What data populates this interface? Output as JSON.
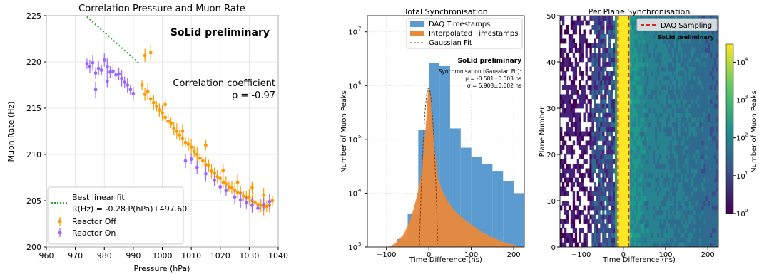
{
  "chart_data": [
    {
      "type": "scatter",
      "title": "Correlation Pressure and Muon Rate",
      "xlabel": "Pressure (hPa)",
      "ylabel": "Muon Rate (Hz)",
      "xlim": [
        960,
        1040
      ],
      "ylim": [
        200,
        225
      ],
      "xticks": [
        "960",
        "970",
        "980",
        "990",
        "1000",
        "1010",
        "1020",
        "1030",
        "1040"
      ],
      "yticks": [
        "200",
        "205",
        "210",
        "215",
        "220",
        "225"
      ],
      "grid": true,
      "watermark": "SoLid preliminary",
      "annotation_1": "Correlation coefficient",
      "annotation_2": "ρ = -0.97",
      "legend_position": "bottom-left",
      "fit": {
        "name": "Best linear fit",
        "formula": "R(Hz) = -0.28·P(hPa)+497.60",
        "slope": -0.28,
        "intercept": 497.6,
        "color": "#2ca02c"
      },
      "series": [
        {
          "name": "Reactor Off",
          "color": "#ff9900",
          "points": [
            [
              993,
              217.5
            ],
            [
              994,
              216.5
            ],
            [
              995,
              216.8
            ],
            [
              996,
              216.0
            ],
            [
              997,
              215.6
            ],
            [
              998,
              215.2
            ],
            [
              999,
              214.8
            ],
            [
              1000,
              214.5
            ],
            [
              1001,
              214.0
            ],
            [
              1002,
              213.6
            ],
            [
              1003,
              213.4
            ],
            [
              1004,
              212.8
            ],
            [
              1005,
              212.5
            ],
            [
              1006,
              212.1
            ],
            [
              1007,
              211.7
            ],
            [
              1008,
              211.3
            ],
            [
              1009,
              211.1
            ],
            [
              1010,
              210.8
            ],
            [
              1011,
              210.3
            ],
            [
              1012,
              210.0
            ],
            [
              1013,
              209.6
            ],
            [
              1014,
              209.3
            ],
            [
              1015,
              208.9
            ],
            [
              1016,
              208.8
            ],
            [
              1017,
              208.2
            ],
            [
              1018,
              208.0
            ],
            [
              1019,
              207.6
            ],
            [
              1020,
              207.4
            ],
            [
              1021,
              207.0
            ],
            [
              1022,
              206.8
            ],
            [
              1023,
              206.5
            ],
            [
              1024,
              206.4
            ],
            [
              1025,
              206.1
            ],
            [
              1026,
              205.9
            ],
            [
              1027,
              205.8
            ],
            [
              1028,
              205.5
            ],
            [
              1029,
              205.3
            ],
            [
              1030,
              205.4
            ],
            [
              1031,
              205.0
            ],
            [
              1032,
              204.8
            ],
            [
              1033,
              204.6
            ],
            [
              1034,
              204.5
            ],
            [
              1035,
              204.3
            ],
            [
              1036,
              204.4
            ],
            [
              1037,
              204.5
            ],
            [
              1038,
              205.0
            ],
            [
              994,
              220.7
            ],
            [
              996,
              221.0
            ],
            [
              1001,
              215.4
            ],
            [
              1007,
              212.5
            ],
            [
              1015,
              211.0
            ],
            [
              1021,
              208.3
            ],
            [
              1026,
              207.0
            ],
            [
              1031,
              206.4
            ],
            [
              1035,
              205.6
            ]
          ]
        },
        {
          "name": "Reactor On",
          "color": "#9966ff",
          "points": [
            [
              974,
              219.8
            ],
            [
              975,
              219.5
            ],
            [
              976,
              219.9
            ],
            [
              977,
              218.8
            ],
            [
              978,
              219.3
            ],
            [
              979,
              219.1
            ],
            [
              980,
              220.2
            ],
            [
              981,
              219.5
            ],
            [
              982,
              218.9
            ],
            [
              983,
              219.0
            ],
            [
              984,
              218.6
            ],
            [
              985,
              218.7
            ],
            [
              986,
              218.2
            ],
            [
              987,
              217.8
            ],
            [
              988,
              217.5
            ],
            [
              989,
              217.0
            ],
            [
              990,
              216.6
            ],
            [
              977,
              217.0
            ],
            [
              981,
              217.9
            ],
            [
              1008,
              209.3
            ],
            [
              1010,
              209.5
            ],
            [
              1012,
              208.6
            ],
            [
              1015,
              207.9
            ],
            [
              1018,
              207.2
            ],
            [
              1020,
              206.5
            ],
            [
              1022,
              206.1
            ],
            [
              1025,
              205.4
            ],
            [
              1027,
              205.1
            ],
            [
              1029,
              204.8
            ],
            [
              1031,
              204.5
            ],
            [
              1033,
              204.2
            ],
            [
              1035,
              204.6
            ],
            [
              1037,
              204.9
            ]
          ]
        }
      ]
    },
    {
      "type": "bar",
      "title": "Total Synchronisation",
      "xlabel": "Time Difference (ns)",
      "ylabel": "Number of Muon Peaks",
      "yscale": "log",
      "xlim": [
        -145,
        225
      ],
      "ylim": [
        1000,
        20000000
      ],
      "xticks": [
        "−100",
        "0",
        "100",
        "200"
      ],
      "yticks": [
        "10",
        "10",
        "10",
        "10",
        "10"
      ],
      "ytick_exponents": [
        "3",
        "4",
        "5",
        "6",
        "7"
      ],
      "grid": true,
      "legend_position": "top-right",
      "watermark": "SoLid preliminary",
      "fit_note_1": "Synchronisation (Gaussian Fit):",
      "fit_note_2": "μ = -0.581±0.003 ns",
      "fit_note_3": "σ =  5.908±0.002 ns",
      "series": [
        {
          "name": "DAQ Timestamps",
          "color": "#5b9bd0",
          "bins": [
            [
              -100,
              -75,
              1000
            ],
            [
              -75,
              -50,
              1400
            ],
            [
              -50,
              -25,
              4200
            ],
            [
              -25,
              0,
              150000
            ],
            [
              0,
              25,
              2600000
            ],
            [
              25,
              50,
              2300000
            ],
            [
              50,
              75,
              160000
            ],
            [
              75,
              100,
              70000
            ],
            [
              100,
              125,
              48000
            ],
            [
              125,
              150,
              35000
            ],
            [
              150,
              175,
              26000
            ],
            [
              175,
              200,
              17000
            ],
            [
              200,
              225,
              10000
            ]
          ]
        },
        {
          "name": "Interpolated Timestamps",
          "color": "#e8893c",
          "curve": [
            [
              -95,
              1000
            ],
            [
              -80,
              1150
            ],
            [
              -60,
              1700
            ],
            [
              -45,
              3000
            ],
            [
              -35,
              5500
            ],
            [
              -28,
              9000
            ],
            [
              -20,
              18000
            ],
            [
              -12,
              60000
            ],
            [
              -6,
              250000
            ],
            [
              -2,
              800000
            ],
            [
              0,
              900000
            ],
            [
              4,
              600000
            ],
            [
              8,
              200000
            ],
            [
              14,
              60000
            ],
            [
              22,
              18000
            ],
            [
              32,
              11000
            ],
            [
              45,
              7000
            ],
            [
              60,
              4800
            ],
            [
              80,
              3400
            ],
            [
              100,
              2600
            ],
            [
              125,
              1900
            ],
            [
              150,
              1500
            ],
            [
              180,
              1200
            ],
            [
              210,
              1050
            ],
            [
              225,
              1000
            ]
          ]
        },
        {
          "name": "Gaussian Fit",
          "color": "#8b3a00",
          "mu": -0.581,
          "sigma": 5.908,
          "peak": 900000
        }
      ]
    },
    {
      "type": "heatmap",
      "title": "Per Plane Synchronisation",
      "xlabel": "Time Difference (ns)",
      "ylabel": "Plane Number",
      "xlim": [
        -150,
        225
      ],
      "ylim": [
        0,
        50
      ],
      "xticks": [
        "−100",
        "0",
        "100",
        "200"
      ],
      "yticks": [
        "0",
        "10",
        "20",
        "30",
        "40",
        "50"
      ],
      "watermark": "SoLid preliminary",
      "legend_position": "top-right",
      "lines": {
        "name": "DAQ Sampling",
        "color": "#d62728",
        "x": [
          -12.5,
          12.5
        ]
      },
      "colorbar": {
        "label": "Number of Muon Peaks",
        "scale": "log",
        "range": [
          1,
          30000
        ],
        "ticks": [
          "10",
          "10",
          "10",
          "10",
          "10"
        ],
        "tick_exponents": [
          "0",
          "1",
          "2",
          "3",
          "4"
        ]
      }
    }
  ]
}
